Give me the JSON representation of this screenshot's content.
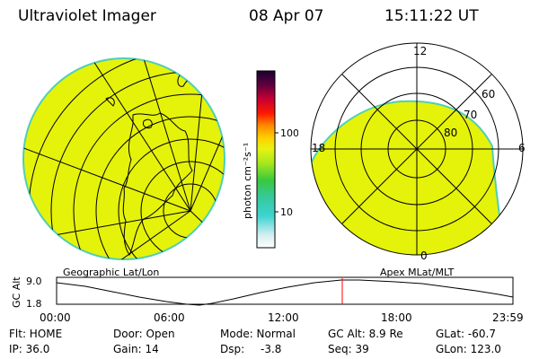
{
  "header": {
    "title": "Ultraviolet Imager",
    "date": "08 Apr 07",
    "time": "15:11:22 UT"
  },
  "colors": {
    "fill": "#e5f20a",
    "fill_edge": "#4fcfb8",
    "accent_marker": "#ff0000"
  },
  "left_panel": {
    "caption": "Geographic Lat/Lon"
  },
  "right_panel": {
    "caption": "Apex MLat/MLT",
    "mlt_labels": {
      "top": "12",
      "left": "18",
      "right": "6",
      "bottom": "0"
    },
    "mlat_labels": [
      "60",
      "70",
      "80"
    ]
  },
  "colorbar": {
    "unit_label": "photon cm⁻²s⁻¹",
    "ticks": [
      "100",
      "10"
    ],
    "scale": "log"
  },
  "altitude_panel": {
    "ylabel": "GC Alt",
    "y_ticks": [
      "9.0",
      "1.8"
    ],
    "x_ticks": [
      "00:00",
      "06:00",
      "12:00",
      "18:00",
      "23:59"
    ],
    "marker_time": "15:11:22"
  },
  "status": {
    "flt": "Flt: HOME",
    "ip": "IP: 36.0",
    "door": "Door: Open",
    "gain": "Gain: 14",
    "mode": "Mode: Normal",
    "dsp": "Dsp:",
    "dsp_value": "-3.8",
    "gc_alt": "GC Alt: 8.9 Re",
    "seq": "Seq: 39",
    "glat": "GLat: -60.7",
    "glon": "GLon: 123.0"
  }
}
